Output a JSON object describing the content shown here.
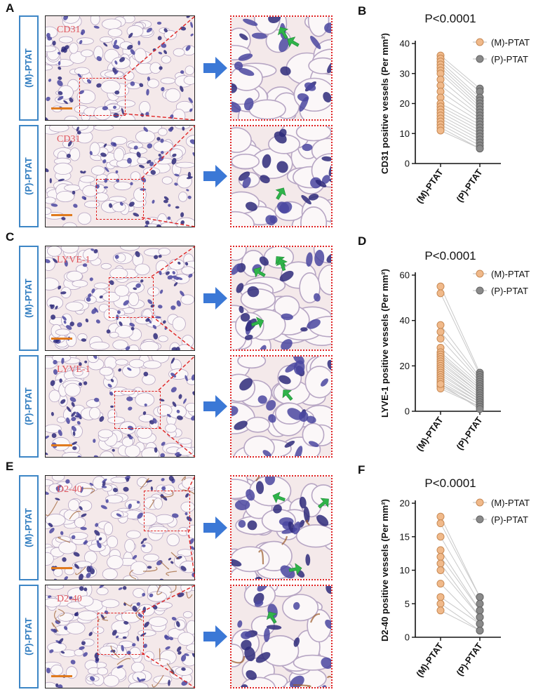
{
  "panels": [
    {
      "letter": "A",
      "groups": [
        "(M)-PTAT",
        "(P)-PTAT"
      ],
      "stain": "CD31"
    },
    {
      "letter": "C",
      "groups": [
        "(M)-PTAT",
        "(P)-PTAT"
      ],
      "stain": "LYVE-1"
    },
    {
      "letter": "E",
      "groups": [
        "(M)-PTAT",
        "(P)-PTAT"
      ],
      "stain": "D2-40"
    }
  ],
  "chart_data": [
    {
      "letter": "B",
      "type": "scatter",
      "title": "P<0.0001",
      "ylabel": "CD31 positive vessels (Per mm²)",
      "categories": [
        "(M)-PTAT",
        "(P)-PTAT"
      ],
      "ylim": [
        0,
        40
      ],
      "yticks": [
        0,
        10,
        20,
        30,
        40
      ],
      "legend": [
        "(M)-PTAT",
        "(P)-PTAT"
      ],
      "colors": {
        "m": "#f0b98a",
        "p": "#8a8a8a"
      },
      "pairs": [
        [
          36,
          25
        ],
        [
          35,
          24
        ],
        [
          34,
          22
        ],
        [
          33,
          21
        ],
        [
          32,
          20
        ],
        [
          31,
          19
        ],
        [
          30,
          18
        ],
        [
          28,
          17
        ],
        [
          26,
          16
        ],
        [
          24,
          15
        ],
        [
          22,
          14
        ],
        [
          20,
          13
        ],
        [
          19,
          12
        ],
        [
          18,
          11
        ],
        [
          17,
          10
        ],
        [
          16,
          9
        ],
        [
          15,
          8
        ],
        [
          14,
          7
        ],
        [
          13,
          6
        ],
        [
          12,
          5
        ],
        [
          11,
          5
        ]
      ]
    },
    {
      "letter": "D",
      "type": "scatter",
      "title": "P<0.0001",
      "ylabel": "LYVE-1 positive vessels (Per mm²)",
      "categories": [
        "(M)-PTAT",
        "(P)-PTAT"
      ],
      "ylim": [
        0,
        60
      ],
      "yticks": [
        0,
        20,
        40,
        60
      ],
      "legend": [
        "(M)-PTAT",
        "(P)-PTAT"
      ],
      "colors": {
        "m": "#f0b98a",
        "p": "#8a8a8a"
      },
      "pairs": [
        [
          55,
          17
        ],
        [
          52,
          16
        ],
        [
          38,
          15
        ],
        [
          35,
          14
        ],
        [
          32,
          13
        ],
        [
          28,
          12
        ],
        [
          26,
          11
        ],
        [
          25,
          10
        ],
        [
          24,
          10
        ],
        [
          23,
          9
        ],
        [
          22,
          8
        ],
        [
          21,
          8
        ],
        [
          20,
          7
        ],
        [
          19,
          6
        ],
        [
          18,
          6
        ],
        [
          17,
          5
        ],
        [
          16,
          5
        ],
        [
          15,
          4
        ],
        [
          14,
          4
        ],
        [
          13,
          3
        ],
        [
          12,
          3
        ],
        [
          11,
          2
        ],
        [
          10,
          2
        ],
        [
          12,
          1
        ]
      ]
    },
    {
      "letter": "F",
      "type": "scatter",
      "title": "P<0.0001",
      "ylabel": "D2-40 positive vessels (Per mm²)",
      "categories": [
        "(M)-PTAT",
        "(P)-PTAT"
      ],
      "ylim": [
        0,
        20
      ],
      "yticks": [
        0,
        5,
        10,
        15,
        20
      ],
      "legend": [
        "(M)-PTAT",
        "(P)-PTAT"
      ],
      "colors": {
        "m": "#f0b98a",
        "p": "#8a8a8a"
      },
      "pairs": [
        [
          18,
          6
        ],
        [
          17,
          6
        ],
        [
          15,
          5
        ],
        [
          13,
          4
        ],
        [
          12,
          4
        ],
        [
          11,
          3
        ],
        [
          10,
          3
        ],
        [
          8,
          2
        ],
        [
          6,
          2
        ],
        [
          5,
          1
        ],
        [
          4,
          1
        ]
      ]
    }
  ]
}
